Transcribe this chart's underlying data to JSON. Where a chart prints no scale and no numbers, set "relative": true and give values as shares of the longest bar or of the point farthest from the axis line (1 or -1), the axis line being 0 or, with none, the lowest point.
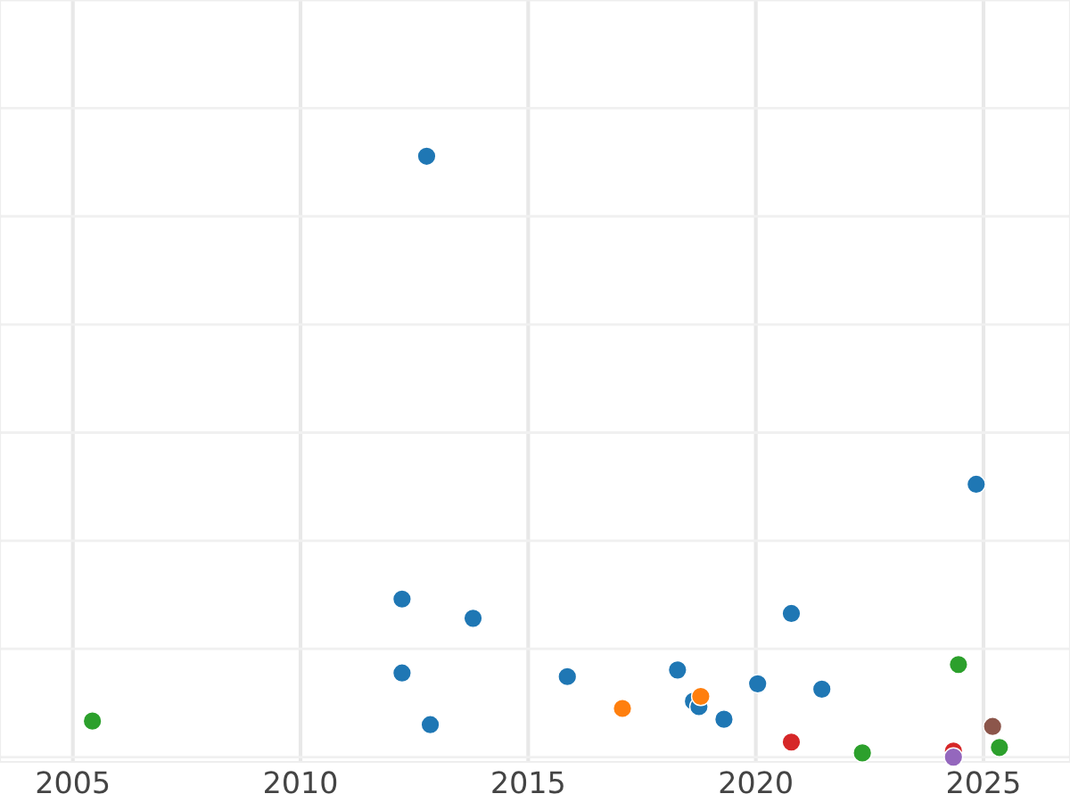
{
  "chart_data": {
    "type": "scatter",
    "relative": true,
    "grid": true,
    "tick_labels": "x",
    "marker": "circle",
    "xlim": [
      2003.4,
      2026.9
    ],
    "xticks": [
      2005,
      2010,
      2015,
      2020,
      2025
    ],
    "series": [
      {
        "color": "#1f77b4",
        "x": [
          2012.77,
          2024.84,
          2012.23,
          2013.79,
          2020.78,
          2012.23,
          2015.86,
          2018.28,
          2018.63,
          2018.75,
          2019.3,
          2020.04,
          2021.45,
          2012.85
        ],
        "values": [
          1,
          0.454,
          0.263,
          0.231,
          0.239,
          0.14,
          0.134,
          0.145,
          0.093,
          0.084,
          0.063,
          0.122,
          0.113,
          0.054
        ]
      },
      {
        "color": "#ff7f0e",
        "x": [
          2017.07,
          2018.79
        ],
        "values": [
          0.081,
          0.101
        ]
      },
      {
        "color": "#2ca02c",
        "x": [
          2005.43,
          2024.45,
          2022.34,
          2025.35
        ],
        "values": [
          0.06,
          0.154,
          0.007,
          0.016
        ]
      },
      {
        "color": "#d62728",
        "x": [
          2020.78,
          2024.34
        ],
        "values": [
          0.025,
          0.01
        ]
      },
      {
        "color": "#9467bd",
        "x": [
          2024.34
        ],
        "values": [
          0
        ]
      },
      {
        "color": "#8c564b",
        "x": [
          2025.2
        ],
        "values": [
          0.051
        ]
      }
    ]
  }
}
